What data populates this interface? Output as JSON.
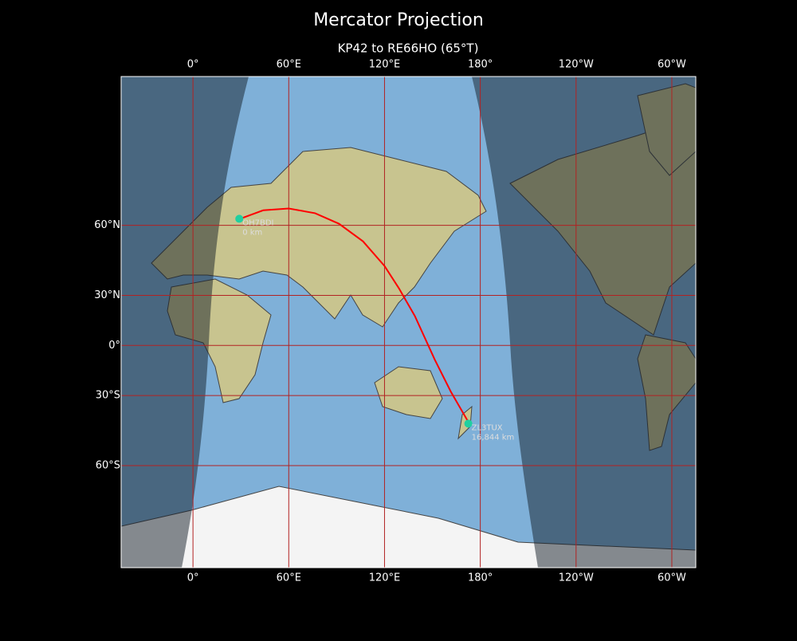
{
  "title": "Mercator Projection",
  "subtitle": "KP42 to RE66HO (65°T)",
  "map": {
    "projection": "mercator",
    "lon_range": [
      -45,
      315
    ],
    "lat_range": [
      -80,
      84
    ],
    "lon_ticks": [
      {
        "value": 0,
        "label": "0°"
      },
      {
        "value": 60,
        "label": "60°E"
      },
      {
        "value": 120,
        "label": "120°E"
      },
      {
        "value": 180,
        "label": "180°"
      },
      {
        "value": 240,
        "label": "120°W"
      },
      {
        "value": 300,
        "label": "60°W"
      }
    ],
    "lat_ticks": [
      {
        "value": 60,
        "label": "60°N"
      },
      {
        "value": 30,
        "label": "30°N"
      },
      {
        "value": 0,
        "label": "0°"
      },
      {
        "value": -30,
        "label": "30°S"
      },
      {
        "value": -60,
        "label": "60°S"
      }
    ],
    "grid_color": "#b22222",
    "path": {
      "color": "#ff0000",
      "lon": [
        29,
        44,
        60,
        76.5,
        91.5,
        106.5,
        120,
        129,
        139,
        151.5,
        161.5,
        173
      ],
      "lat": [
        61.9,
        64.4,
        64.9,
        63.6,
        60.5,
        54.6,
        44.6,
        33.8,
        18.2,
        -8.9,
        -27.8,
        -43.9
      ]
    },
    "stations": [
      {
        "name": "OH7BDI",
        "distance": "0 km",
        "lon": 29,
        "lat": 62
      },
      {
        "name": "ZL3TUX",
        "distance": "16,844 km",
        "lon": 172.5,
        "lat": -44
      }
    ],
    "station_color": "#20d0a0"
  }
}
